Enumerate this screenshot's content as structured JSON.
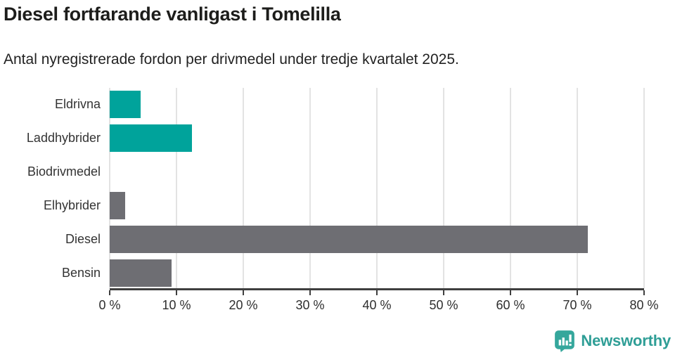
{
  "header": {
    "title": "Diesel fortfarande vanligast i Tomelilla",
    "subtitle": "Antal nyregistrerade fordon per drivmedel under tredje kvartalet 2025."
  },
  "chart_data": {
    "type": "bar",
    "orientation": "horizontal",
    "title": "Diesel fortfarande vanligast i Tomelilla",
    "subtitle": "Antal nyregistrerade fordon per drivmedel under tredje kvartalet 2025.",
    "categories": [
      "Eldrivna",
      "Laddhybrider",
      "Biodrivmedel",
      "Elhybrider",
      "Diesel",
      "Bensin"
    ],
    "values": [
      4.6,
      12.3,
      0,
      2.3,
      71.6,
      9.3
    ],
    "unit": "%",
    "bar_colors": [
      "#00a39b",
      "#00a39b",
      "#00a39b",
      "#6e6e73",
      "#6e6e73",
      "#6e6e73"
    ],
    "xlabel": "",
    "ylabel": "",
    "xlim": [
      0,
      80
    ],
    "x_ticks": [
      0,
      10,
      20,
      30,
      40,
      50,
      60,
      70,
      80
    ],
    "x_tick_labels": [
      "0 %",
      "10 %",
      "20 %",
      "30 %",
      "40 %",
      "50 %",
      "60 %",
      "70 %",
      "80 %"
    ],
    "grid": "vertical-gridlines-on",
    "legend": "none"
  },
  "footer": {
    "brand": "Newsworthy"
  },
  "colors": {
    "accent_teal": "#00a39b",
    "neutral_gray": "#6e6e73",
    "brand_teal": "#2f9e96",
    "gridline": "#e3e3e3",
    "axis": "#3f3f3f"
  }
}
